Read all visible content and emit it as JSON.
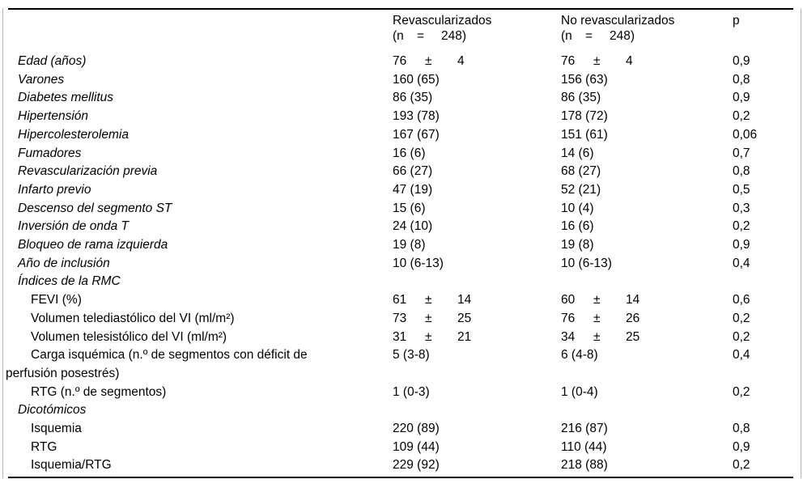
{
  "table_colors": {
    "text": "#000000",
    "rule": "#000000",
    "frame_edge": "#b4b4b4",
    "background": "#ffffff"
  },
  "header": {
    "label_column": "",
    "group1_line1": "Revascularizados",
    "group1_line2": "(n\t=\t248)",
    "group2_line1": "No revascularizados",
    "group2_line2": "(n\t=\t248)",
    "p_label": "p"
  },
  "rows": [
    {
      "label": "Edad (años)",
      "level": "top",
      "revascularizados": "76\t±\t4",
      "no_revascularizados": "76\t±\t4",
      "p": "0,9"
    },
    {
      "label": "Varones",
      "level": "top",
      "revascularizados": "160 (65)",
      "no_revascularizados": "156 (63)",
      "p": "0,8"
    },
    {
      "label": "Diabetes mellitus",
      "level": "top",
      "revascularizados": "86 (35)",
      "no_revascularizados": "86 (35)",
      "p": "0,9"
    },
    {
      "label": "Hipertensión",
      "level": "top",
      "revascularizados": "193 (78)",
      "no_revascularizados": "178 (72)",
      "p": "0,2"
    },
    {
      "label": "Hipercolesterolemia",
      "level": "top",
      "revascularizados": "167 (67)",
      "no_revascularizados": "151 (61)",
      "p": "0,06"
    },
    {
      "label": "Fumadores",
      "level": "top",
      "revascularizados": "16 (6)",
      "no_revascularizados": "14 (6)",
      "p": "0,7"
    },
    {
      "label": "Revascularización previa",
      "level": "top",
      "revascularizados": "66 (27)",
      "no_revascularizados": "68 (27)",
      "p": "0,8"
    },
    {
      "label": "Infarto previo",
      "level": "top",
      "revascularizados": "47 (19)",
      "no_revascularizados": "52 (21)",
      "p": "0,5"
    },
    {
      "label": "Descenso del segmento ST",
      "level": "top",
      "revascularizados": "15 (6)",
      "no_revascularizados": "10 (4)",
      "p": "0,3"
    },
    {
      "label": "Inversión de onda T",
      "level": "top",
      "revascularizados": "24 (10)",
      "no_revascularizados": "16 (6)",
      "p": "0,2"
    },
    {
      "label": "Bloqueo de rama izquierda",
      "level": "top",
      "revascularizados": "19 (8)",
      "no_revascularizados": "19 (8)",
      "p": "0,9"
    },
    {
      "label": "Año de inclusión",
      "level": "top",
      "revascularizados": "10 (6-13)",
      "no_revascularizados": "10 (6-13)",
      "p": "0,4"
    },
    {
      "label": "Índices de la RMC",
      "level": "section",
      "revascularizados": "",
      "no_revascularizados": "",
      "p": ""
    },
    {
      "label": "FEVI (%)",
      "level": "sub",
      "revascularizados": "61\t±\t14",
      "no_revascularizados": "60\t±\t14",
      "p": "0,6"
    },
    {
      "label": "Volumen telediastólico del VI (ml/m²)",
      "level": "sub",
      "revascularizados": "73\t±\t25",
      "no_revascularizados": "76\t±\t26",
      "p": "0,2"
    },
    {
      "label": "Volumen telesistólico del VI (ml/m²)",
      "level": "sub",
      "revascularizados": "31\t±\t21",
      "no_revascularizados": "34\t±\t25",
      "p": "0,2"
    },
    {
      "label": "Carga isquémica (n.º de segmentos con déficit de perfusión posestrés)",
      "level": "sub",
      "revascularizados": "5 (3-8)",
      "no_revascularizados": "6 (4-8)",
      "p": "0,4"
    },
    {
      "label": "RTG (n.º de segmentos)",
      "level": "sub",
      "revascularizados": "1 (0-3)",
      "no_revascularizados": "1 (0-4)",
      "p": "0,2"
    },
    {
      "label": "Dicotómicos",
      "level": "section",
      "revascularizados": "",
      "no_revascularizados": "",
      "p": ""
    },
    {
      "label": "Isquemia",
      "level": "sub",
      "revascularizados": "220 (89)",
      "no_revascularizados": "216 (87)",
      "p": "0,8"
    },
    {
      "label": "RTG",
      "level": "sub",
      "revascularizados": "109 (44)",
      "no_revascularizados": "110 (44)",
      "p": "0,9"
    },
    {
      "label": "Isquemia/RTG",
      "level": "sub",
      "revascularizados": "229 (92)",
      "no_revascularizados": "218 (88)",
      "p": "0,2"
    }
  ]
}
